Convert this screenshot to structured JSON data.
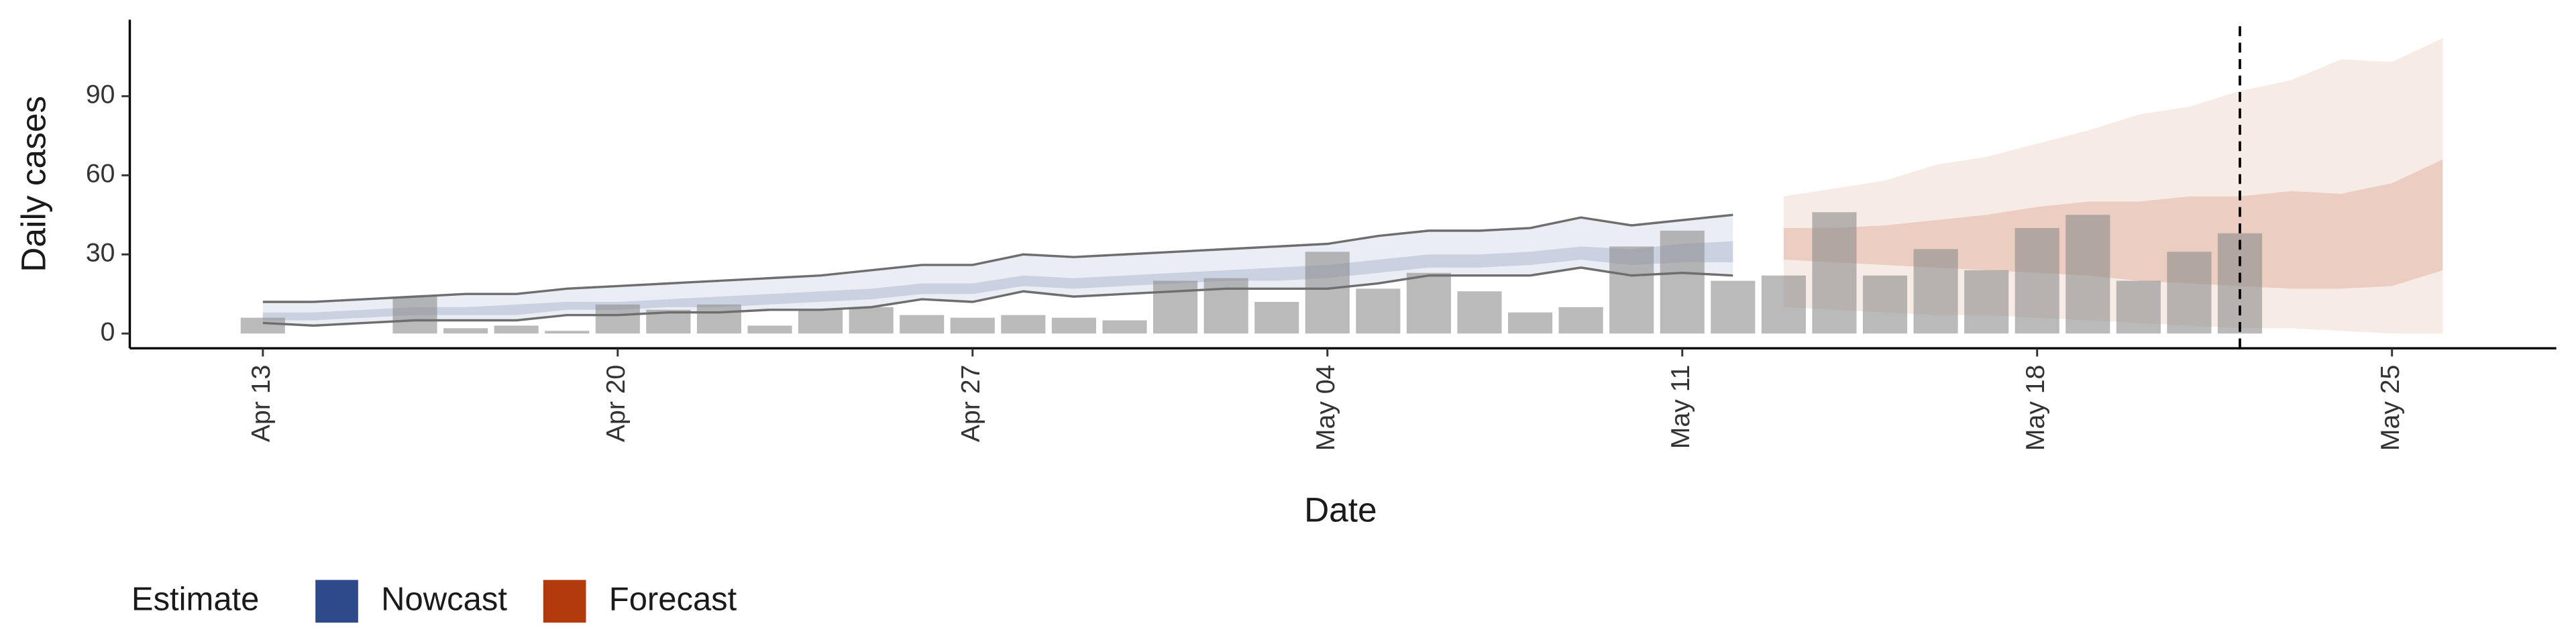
{
  "chart_data": {
    "type": "band",
    "x_label": "Date",
    "y_label": "Daily cases",
    "legend_title": "Estimate",
    "legend_position": "bottom",
    "categories": [
      "Apr 13",
      null,
      null,
      null,
      null,
      null,
      null,
      "Apr 20",
      null,
      null,
      null,
      null,
      null,
      null,
      "Apr 27",
      null,
      null,
      null,
      null,
      null,
      null,
      "May 04",
      null,
      null,
      null,
      null,
      null,
      null,
      "May 11",
      null,
      null,
      null,
      null,
      null,
      null,
      "May 18",
      null,
      null,
      null,
      null,
      null,
      null,
      "May 25",
      null
    ],
    "ylim": [
      -5.6,
      119
    ],
    "yticks": [
      0,
      30,
      60,
      90
    ],
    "reference_line": {
      "category_index": 39,
      "color": "#000000"
    },
    "bars": {
      "color": "#8c8c8c",
      "values": [
        6,
        null,
        null,
        14,
        2,
        3,
        1,
        11,
        9,
        11,
        3,
        9,
        10,
        7,
        6,
        7,
        6,
        5,
        20,
        21,
        12,
        31,
        17,
        23,
        16,
        8,
        10,
        33,
        39,
        20,
        22,
        46,
        22,
        32,
        24,
        40,
        45,
        20,
        31,
        38,
        null,
        null,
        null,
        null
      ]
    },
    "series": [
      {
        "name": "Nowcast",
        "color": "#2e4a8b",
        "bound_line_color": "#6e6e6e",
        "upper90": [
          12,
          12,
          13,
          14,
          15,
          15,
          17,
          18,
          19,
          20,
          21,
          22,
          24,
          26,
          26,
          30,
          29,
          30,
          31,
          32,
          33,
          34,
          37,
          39,
          39,
          40,
          44,
          41,
          43,
          45,
          null,
          null,
          null,
          null,
          null,
          null,
          null,
          null,
          null,
          null,
          null,
          null,
          null,
          null
        ],
        "lower90": [
          4,
          3,
          4,
          5,
          5,
          5,
          7,
          7,
          8,
          8,
          9,
          9,
          10,
          13,
          12,
          16,
          14,
          15,
          16,
          17,
          17,
          17,
          19,
          22,
          22,
          22,
          25,
          22,
          23,
          22,
          null,
          null,
          null,
          null,
          null,
          null,
          null,
          null,
          null,
          null,
          null,
          null,
          null,
          null
        ],
        "upper50": [
          8,
          8,
          9,
          10,
          10,
          11,
          12,
          12,
          13,
          14,
          15,
          16,
          17,
          19,
          19,
          22,
          21,
          22,
          23,
          24,
          25,
          26,
          28,
          30,
          30,
          31,
          33,
          32,
          34,
          35,
          null,
          null,
          null,
          null,
          null,
          null,
          null,
          null,
          null,
          null,
          null,
          null,
          null,
          null
        ],
        "lower50": [
          5,
          5,
          6,
          7,
          7,
          7,
          9,
          9,
          10,
          10,
          11,
          12,
          13,
          15,
          15,
          18,
          17,
          18,
          19,
          20,
          20,
          21,
          23,
          25,
          25,
          26,
          28,
          26,
          27,
          27,
          null,
          null,
          null,
          null,
          null,
          null,
          null,
          null,
          null,
          null,
          null,
          null,
          null,
          null
        ]
      },
      {
        "name": "Forecast",
        "color": "#b33a0c",
        "upper90": [
          null,
          null,
          null,
          null,
          null,
          null,
          null,
          null,
          null,
          null,
          null,
          null,
          null,
          null,
          null,
          null,
          null,
          null,
          null,
          null,
          null,
          null,
          null,
          null,
          null,
          null,
          null,
          null,
          null,
          null,
          52,
          55,
          58,
          64,
          67,
          72,
          77,
          83,
          86,
          92,
          96,
          104,
          103,
          112
        ],
        "lower90": [
          null,
          null,
          null,
          null,
          null,
          null,
          null,
          null,
          null,
          null,
          null,
          null,
          null,
          null,
          null,
          null,
          null,
          null,
          null,
          null,
          null,
          null,
          null,
          null,
          null,
          null,
          null,
          null,
          null,
          null,
          10,
          9,
          8,
          7,
          7,
          6,
          5,
          4,
          3,
          2,
          2,
          1,
          0,
          0
        ],
        "upper50": [
          null,
          null,
          null,
          null,
          null,
          null,
          null,
          null,
          null,
          null,
          null,
          null,
          null,
          null,
          null,
          null,
          null,
          null,
          null,
          null,
          null,
          null,
          null,
          null,
          null,
          null,
          null,
          null,
          null,
          null,
          40,
          40,
          41,
          43,
          45,
          48,
          50,
          50,
          52,
          52,
          54,
          53,
          57,
          66
        ],
        "lower50": [
          null,
          null,
          null,
          null,
          null,
          null,
          null,
          null,
          null,
          null,
          null,
          null,
          null,
          null,
          null,
          null,
          null,
          null,
          null,
          null,
          null,
          null,
          null,
          null,
          null,
          null,
          null,
          null,
          null,
          null,
          28,
          27,
          26,
          25,
          24,
          23,
          22,
          20,
          19,
          18,
          17,
          17,
          18,
          24
        ]
      }
    ]
  }
}
